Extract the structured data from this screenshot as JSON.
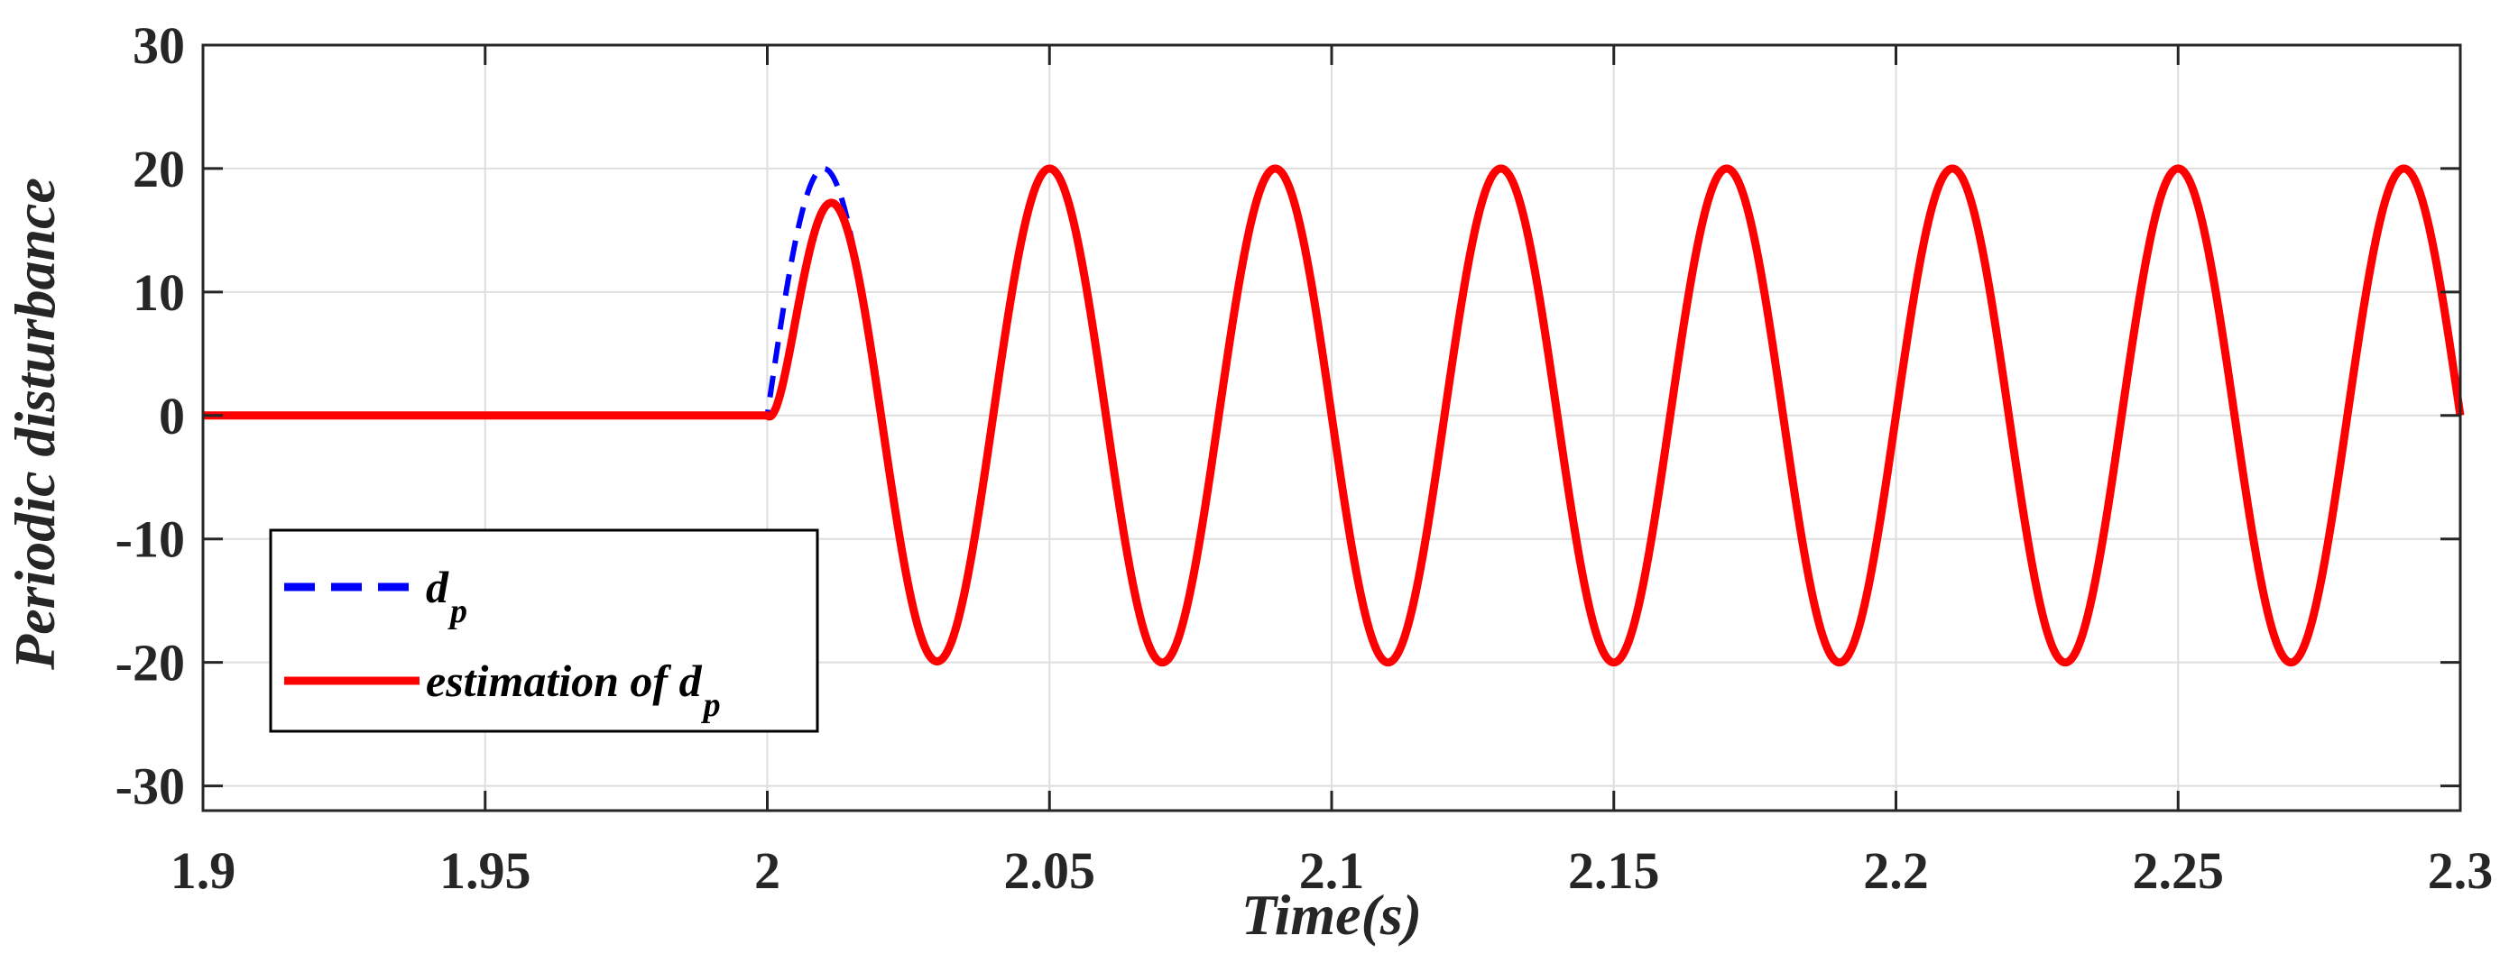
{
  "chart_data": {
    "type": "line",
    "title": "",
    "xlabel": "Time(s)",
    "ylabel": "Periodic disturbance",
    "xlim": [
      1.9,
      2.3
    ],
    "ylim": [
      -32,
      30
    ],
    "grid": true,
    "legend_position": "bottom-left",
    "xticks": [
      1.9,
      1.95,
      2.0,
      2.05,
      2.1,
      2.15,
      2.2,
      2.25,
      2.3
    ],
    "xtick_labels": [
      "1.9",
      "1.95",
      "2",
      "2.05",
      "2.1",
      "2.15",
      "2.2",
      "2.25",
      "2.3"
    ],
    "yticks": [
      30,
      20,
      10,
      0,
      -10,
      -20,
      -30
    ],
    "ytick_labels": [
      "30",
      "20",
      "10",
      "0",
      "-10",
      "-20",
      "-30"
    ],
    "series": [
      {
        "name": "d",
        "name_sub": "p",
        "color": "#0000ff",
        "style": "dashed",
        "description": "0 for t < 2, then 20*sin(2*pi*25*(t-2))",
        "amplitude": 20,
        "frequency_hz": 25,
        "start_time": 2.0
      },
      {
        "name": "estimation of d",
        "name_sub": "p",
        "color": "#ff0000",
        "style": "solid",
        "description": "0 for t < 2, then converges to 20*sin(2*pi*25*(t-2)) within ~0.03 s",
        "amplitude": 20,
        "frequency_hz": 25,
        "start_time": 2.0
      }
    ]
  }
}
